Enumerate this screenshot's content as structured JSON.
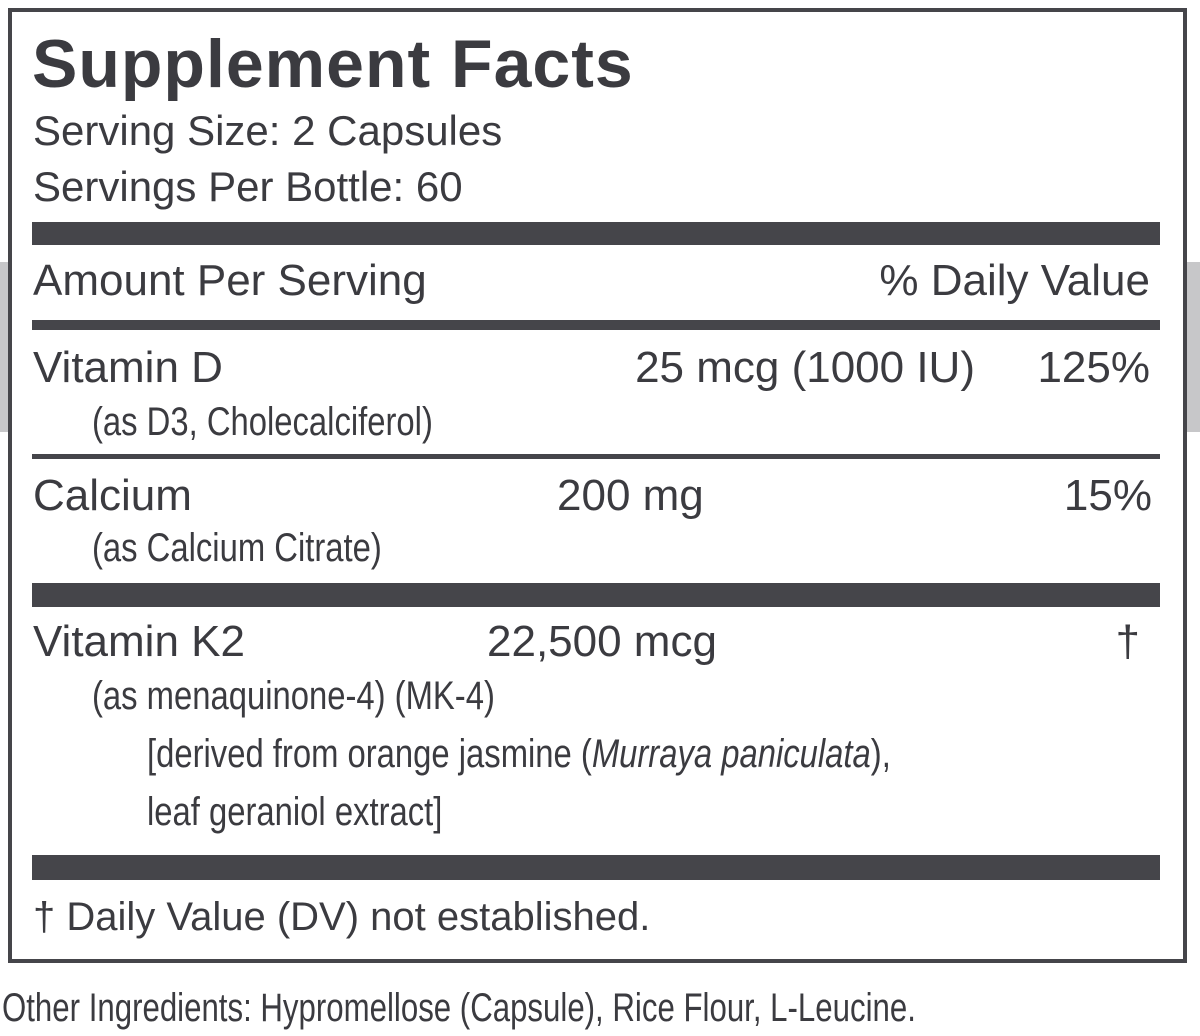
{
  "header": {
    "title": "Supplement Facts",
    "serving_size": "Serving Size: 2 Capsules",
    "servings_per_container": "Servings Per Bottle: 60"
  },
  "columns": {
    "amount": "Amount Per Serving",
    "daily_value": "% Daily Value"
  },
  "rows": [
    {
      "name": "Vitamin D",
      "source": "(as D3, Cholecalciferol)",
      "amount": "25 mcg (1000 IU)",
      "daily_value": "125%"
    },
    {
      "name": "Calcium",
      "source": "(as Calcium Citrate)",
      "amount": "200 mg",
      "daily_value": "15%"
    },
    {
      "name": "Vitamin K2",
      "source": "(as menaquinone-4) (MK-4)",
      "amount": "22,500 mcg",
      "daily_value": "†",
      "derived": [
        "[derived from orange jasmine (",
        "Murraya paniculata",
        "),",
        "leaf geraniol extract]"
      ]
    }
  ],
  "footnote": "† Daily Value (DV) not established.",
  "other_ingredients": "Other Ingredients: Hypromellose (Capsule), Rice Flour, L-Leucine."
}
